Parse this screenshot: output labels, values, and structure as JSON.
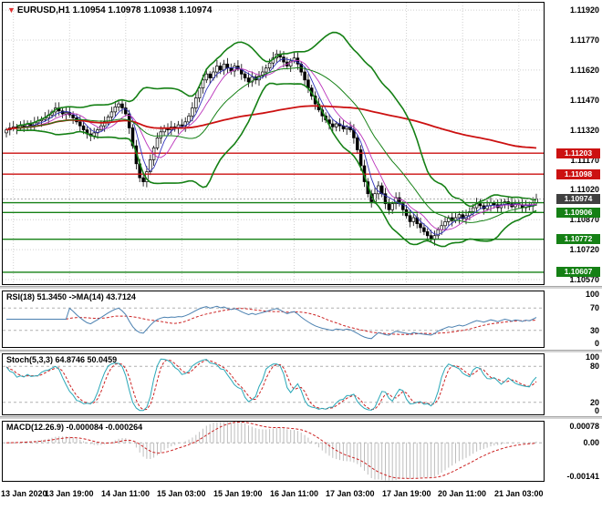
{
  "colors": {
    "background": "#ffffff",
    "grid": "#d0d0d0",
    "level": "#b0b0b0",
    "candle_outline": "#000000",
    "candle_up": "#ffffff",
    "candle_down": "#000000",
    "bid_line": "#999999",
    "histogram": "#bdbdbd",
    "signal_red": "#cc2222",
    "rsi_line": "#4a80b0",
    "stoch_line": "#2aa8b8",
    "marker_red": "#e03030"
  },
  "chart_data": [
    {
      "type": "candlestick",
      "marker": "▼",
      "title": "EURUSD,H1 1.10954 1.10978 1.10938 1.10974",
      "symbol": "EURUSD",
      "timeframe": "H1",
      "ohlc": {
        "open": "1.10954",
        "high": "1.10978",
        "low": "1.10938",
        "close": "1.10974"
      },
      "x_labels": [
        "13 Jan 2020",
        "13 Jan 19:00",
        "14 Jan 11:00",
        "15 Jan 03:00",
        "15 Jan 19:00",
        "16 Jan 11:00",
        "17 Jan 03:00",
        "17 Jan 19:00",
        "20 Jan 11:00",
        "21 Jan 03:00"
      ],
      "x_tick_indices": [
        2,
        18,
        34,
        50,
        66,
        82,
        98,
        114,
        130,
        146
      ],
      "y_ticks": [
        1.1192,
        1.1177,
        1.1162,
        1.1147,
        1.1132,
        1.1117,
        1.1102,
        1.1087,
        1.1072,
        1.1057
      ],
      "ylim": [
        1.10547,
        1.11957
      ],
      "closes": [
        1.1132,
        1.1133,
        1.11335,
        1.11328,
        1.1134,
        1.11338,
        1.11348,
        1.11342,
        1.11355,
        1.11365,
        1.11372,
        1.1138,
        1.11395,
        1.1141,
        1.1143,
        1.11415,
        1.114,
        1.11408,
        1.11395,
        1.1138,
        1.1136,
        1.1134,
        1.1132,
        1.113,
        1.1129,
        1.11305,
        1.1132,
        1.1134,
        1.1136,
        1.11385,
        1.1141,
        1.11435,
        1.1145,
        1.1143,
        1.114,
        1.1133,
        1.1124,
        1.1115,
        1.1108,
        1.1106,
        1.1111,
        1.1117,
        1.1123,
        1.1128,
        1.1131,
        1.1133,
        1.1132,
        1.11335,
        1.1133,
        1.11345,
        1.1134,
        1.1136,
        1.1139,
        1.1143,
        1.1148,
        1.1153,
        1.1157,
        1.116,
        1.1158,
        1.1161,
        1.1164,
        1.1162,
        1.1165,
        1.1163,
        1.11615,
        1.1164,
        1.11625,
        1.116,
        1.1158,
        1.1156,
        1.11585,
        1.1157,
        1.1159,
        1.1161,
        1.1163,
        1.11655,
        1.1168,
        1.117,
        1.11685,
        1.1166,
        1.1164,
        1.11665,
        1.1168,
        1.1165,
        1.1161,
        1.1157,
        1.1153,
        1.1149,
        1.1145,
        1.1142,
        1.1139,
        1.1137,
        1.1135,
        1.11335,
        1.1135,
        1.1134,
        1.11325,
        1.11335,
        1.1132,
        1.1128,
        1.1122,
        1.1114,
        1.1106,
        1.11,
        1.1096,
        1.11,
        1.1104,
        1.11,
        1.1095,
        1.1092,
        1.1095,
        1.1098,
        1.1095,
        1.1092,
        1.1089,
        1.1086,
        1.1088,
        1.1085,
        1.1083,
        1.1081,
        1.1079,
        1.1077,
        1.1079,
        1.1082,
        1.1084,
        1.1086,
        1.1088,
        1.10865,
        1.1088,
        1.10895,
        1.10875,
        1.1089,
        1.1091,
        1.1093,
        1.1095,
        1.1094,
        1.10925,
        1.1094,
        1.10955,
        1.10945,
        1.1093,
        1.10945,
        1.1096,
        1.1095,
        1.10935,
        1.1095,
        1.10945,
        1.1093,
        1.10945,
        1.10938,
        1.10954,
        1.10974
      ],
      "overlays": {
        "bollinger": {
          "period": 20,
          "deviation": 2,
          "color": "#158015"
        },
        "ma_long": {
          "period": 110,
          "color": "#cc1111"
        },
        "ma_fast": {
          "period": 5,
          "color": "#3333bb"
        },
        "ma_mid": {
          "period": 9,
          "color": "#bb33bb"
        }
      },
      "horizontal_lines": [
        {
          "price": 1.11203,
          "color": "#cc1111",
          "label": "1.11203"
        },
        {
          "price": 1.11098,
          "color": "#cc1111",
          "label": "1.11098"
        },
        {
          "price": 1.10955,
          "color": "#158015",
          "label": ""
        },
        {
          "price": 1.10906,
          "color": "#158015",
          "label": "1.10906"
        },
        {
          "price": 1.10772,
          "color": "#158015",
          "label": "1.10772"
        },
        {
          "price": 1.10607,
          "color": "#158015",
          "label": "1.10607"
        }
      ],
      "current_price": {
        "value": 1.10974,
        "label": "1.10974",
        "tag_color": "#404040"
      }
    },
    {
      "type": "line",
      "name": "RSI",
      "label": "RSI(18) 51.3450 ->MA(14) 43.7124",
      "params": {
        "period": 18,
        "ma_period": 14
      },
      "last_values": {
        "rsi": "51.3450",
        "ma": "43.7124"
      },
      "levels": [
        70,
        30
      ],
      "ylim": [
        0,
        100
      ],
      "y_axis_labels": [
        "100",
        "70",
        "30",
        "0"
      ],
      "derived_from": "closes"
    },
    {
      "type": "line",
      "name": "Stochastic",
      "label": "Stoch(5,3,3) 64.8746 50.0459",
      "params": {
        "k_period": 5,
        "d_period": 3,
        "slowing": 3
      },
      "last_values": {
        "k": "64.8746",
        "d": "50.0459"
      },
      "levels": [
        80,
        20
      ],
      "ylim": [
        0,
        100
      ],
      "y_axis_labels": [
        "100",
        "80",
        "20",
        "0"
      ],
      "derived_from": "closes"
    },
    {
      "type": "macd",
      "name": "MACD",
      "label": "MACD(12.26.9) -0.000084 -0.000264",
      "params": {
        "fast": 12,
        "slow": 26,
        "signal": 9
      },
      "last_values": {
        "macd": "-0.000084",
        "signal": "-0.000264"
      },
      "ylim": [
        -0.00141,
        0.00078
      ],
      "y_axis_labels": [
        "0.00078",
        "0.00",
        "-0.00141"
      ],
      "derived_from": "closes"
    }
  ]
}
